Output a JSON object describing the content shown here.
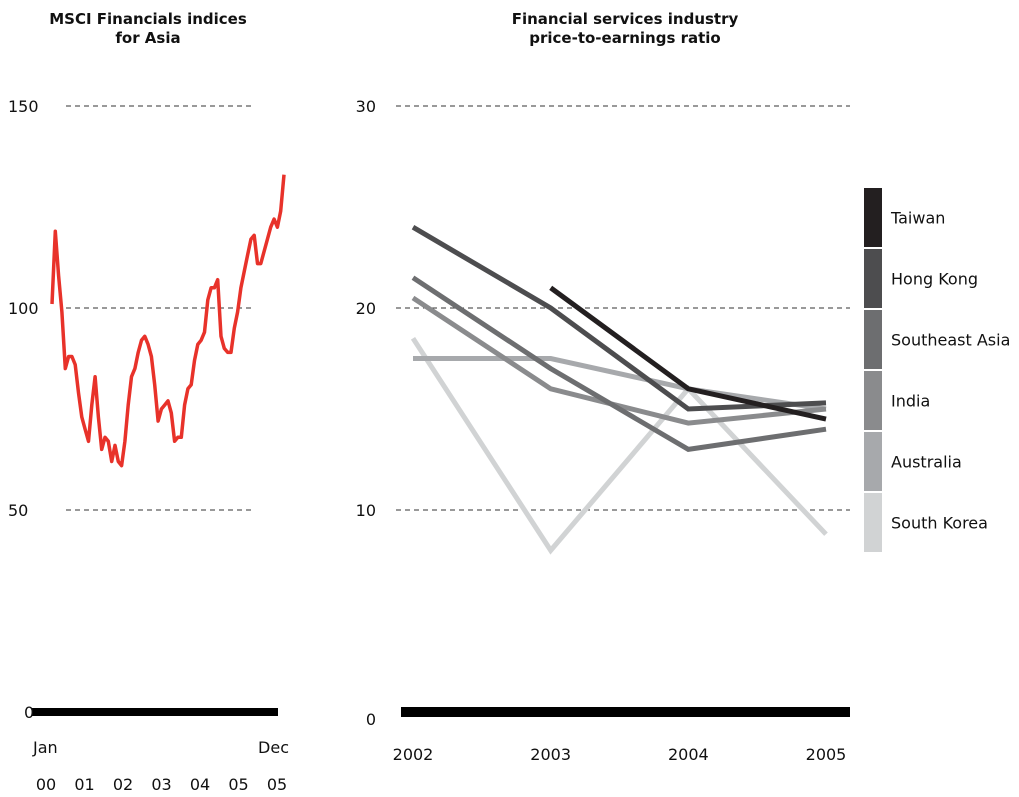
{
  "chart_data": [
    {
      "type": "line",
      "title_lines": [
        "MSCI Financials indices",
        "for Asia"
      ],
      "ylim": [
        0,
        150
      ],
      "yticks": [
        0,
        50,
        100,
        150
      ],
      "x_endpoint_labels": [
        "Jan",
        "Dec"
      ],
      "x_year_labels": [
        "00",
        "01",
        "02",
        "03",
        "04",
        "05",
        "05"
      ],
      "grid": true,
      "line_color": "#e8322a",
      "series": [
        {
          "values": [
            101,
            119,
            108,
            99,
            85,
            88,
            88,
            86,
            79,
            73,
            70,
            67,
            76,
            83,
            73,
            65,
            68,
            67,
            62,
            66,
            62,
            61,
            67,
            76,
            83,
            85,
            89,
            92,
            93,
            91,
            88,
            81,
            72,
            75,
            76,
            77,
            74,
            67,
            68,
            68,
            76,
            80,
            81,
            87,
            91,
            92,
            94,
            102,
            105,
            105,
            107,
            93,
            90,
            89,
            89,
            95,
            99,
            105,
            109,
            113,
            117,
            118,
            111,
            111,
            114,
            117,
            120,
            122,
            120,
            124,
            133
          ]
        }
      ]
    },
    {
      "type": "line",
      "title_lines": [
        "Financial services industry",
        "price-to-earnings ratio"
      ],
      "x": [
        "2002",
        "2003",
        "2004",
        "2005"
      ],
      "ylim": [
        0,
        30
      ],
      "yticks": [
        0,
        10,
        20,
        30
      ],
      "grid": true,
      "legend_position": "right",
      "series": [
        {
          "name": "Taiwan",
          "color": "#231f20",
          "values": [
            null,
            21,
            16,
            14.5
          ]
        },
        {
          "name": "Hong Kong",
          "color": "#4d4d4f",
          "values": [
            24,
            20,
            15,
            15.3
          ]
        },
        {
          "name": "Southeast Asia",
          "color": "#6d6e70",
          "values": [
            21.5,
            17,
            13,
            14
          ]
        },
        {
          "name": "India",
          "color": "#8a8b8d",
          "values": [
            20.5,
            16,
            14.3,
            15
          ]
        },
        {
          "name": "Australia",
          "color": "#a7a9ac",
          "values": [
            17.5,
            17.5,
            16,
            15
          ]
        },
        {
          "name": "South Korea",
          "color": "#d1d3d4",
          "values": [
            18.5,
            8,
            16,
            8.8
          ]
        }
      ]
    }
  ]
}
